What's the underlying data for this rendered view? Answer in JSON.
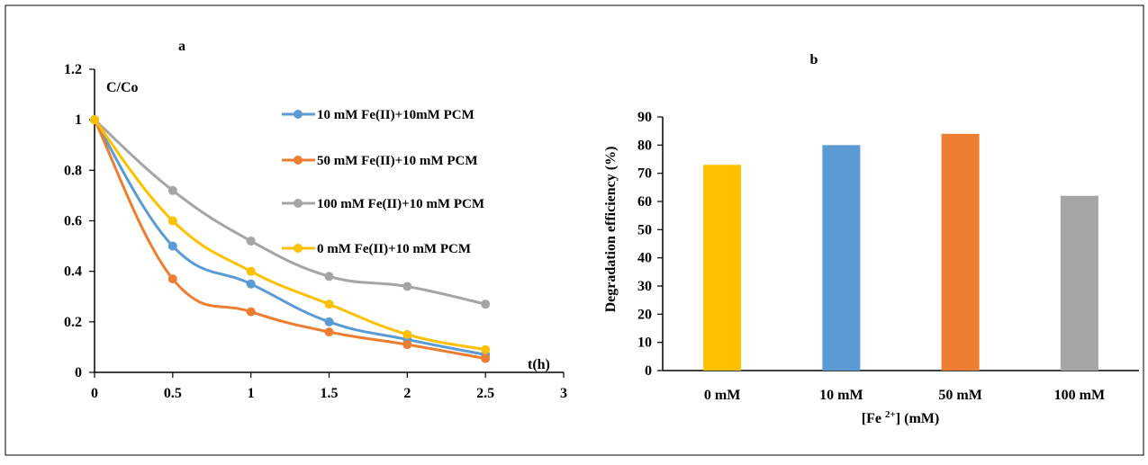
{
  "chart_data": [
    {
      "panel": "a",
      "type": "line",
      "title": "a",
      "xlabel": "t(h)",
      "ylabel": "C/Co",
      "xlim": [
        0,
        3
      ],
      "ylim": [
        0,
        1.2
      ],
      "xticks": [
        "0",
        "0.5",
        "1",
        "1.5",
        "2",
        "2.5",
        "3"
      ],
      "yticks": [
        "0",
        "0.2",
        "0.4",
        "0.6",
        "0.8",
        "1",
        "1.2"
      ],
      "x": [
        0,
        0.5,
        1,
        1.5,
        2,
        2.5
      ],
      "legend_position": "right",
      "series": [
        {
          "name": "10 mM Fe(II)+10mM PCM",
          "color": "#5B9BD5",
          "values": [
            1,
            0.5,
            0.35,
            0.2,
            0.13,
            0.07
          ]
        },
        {
          "name": "50 mM Fe(II)+10 mM PCM",
          "color": "#ED7D31",
          "values": [
            1,
            0.37,
            0.24,
            0.16,
            0.11,
            0.055
          ]
        },
        {
          "name": "100 mM Fe(II)+10 mM PCM",
          "color": "#A5A5A5",
          "values": [
            1,
            0.72,
            0.52,
            0.38,
            0.34,
            0.27
          ]
        },
        {
          "name": "0 mM Fe(II)+10 mM PCM",
          "color": "#FFC000",
          "values": [
            1,
            0.6,
            0.4,
            0.27,
            0.15,
            0.09
          ]
        }
      ]
    },
    {
      "panel": "b",
      "type": "bar",
      "title": "b",
      "xlabel": "[Fe 2+] (mM)",
      "xlabel_main": "[Fe ",
      "xlabel_sup": "2+",
      "xlabel_tail": "] (mM)",
      "ylabel": "Degradation efficiency (%)",
      "ylim": [
        0,
        90
      ],
      "yticks": [
        "0",
        "10",
        "20",
        "30",
        "40",
        "50",
        "60",
        "70",
        "80",
        "90"
      ],
      "categories": [
        "0 mM",
        "10 mM",
        "50 mM",
        "100 mM"
      ],
      "values": [
        73,
        80,
        84,
        62
      ],
      "colors": [
        "#FFC000",
        "#5B9BD5",
        "#ED7D31",
        "#A5A5A5"
      ]
    }
  ]
}
